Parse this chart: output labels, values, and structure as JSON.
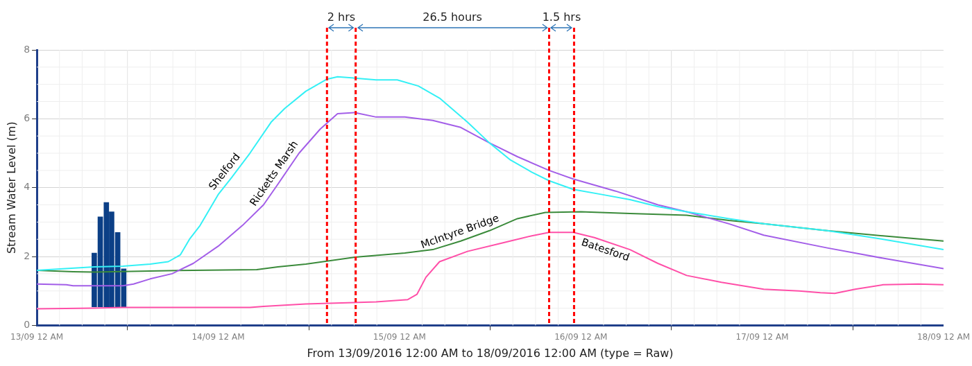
{
  "chart_data": {
    "type": "line",
    "xlabel": "From 13/09/2016 12:00 AM to 18/09/2016 12:00 AM (type = Raw)",
    "ylabel": "Stream Water Level (m)",
    "xlim": [
      "2016-09-13",
      "2016-09-18"
    ],
    "xticks": [
      {
        "value": "2016-09-13",
        "label": "13/09 12 AM"
      },
      {
        "value": "2016-09-14",
        "label": "14/09 12 AM"
      },
      {
        "value": "2016-09-15",
        "label": "15/09 12 AM"
      },
      {
        "value": "2016-09-16",
        "label": "16/09 12 AM"
      },
      {
        "value": "2016-09-17",
        "label": "17/09 12 AM"
      },
      {
        "value": "2016-09-18",
        "label": "18/09 12 AM"
      }
    ],
    "ylim": [
      0,
      8
    ],
    "yticks": [
      0,
      2,
      4,
      6,
      8
    ],
    "grid": true,
    "marker": "none",
    "line_style": "solid",
    "series": [
      {
        "name": "Shelford",
        "color": "#33f0f5",
        "x": [
          "2016-09-13T00:00",
          "2016-09-13T07:36",
          "2016-09-13T11:24",
          "2016-09-13T15:00",
          "2016-09-13T17:24",
          "2016-09-13T19:00",
          "2016-09-13T20:12",
          "2016-09-13T21:36",
          "2016-09-14T00:00",
          "2016-09-14T01:48",
          "2016-09-14T04:12",
          "2016-09-14T07:00",
          "2016-09-14T08:48",
          "2016-09-14T11:36",
          "2016-09-14T14:24",
          "2016-09-14T15:48",
          "2016-09-14T18:06",
          "2016-09-14T20:54",
          "2016-09-14T23:42",
          "2016-09-15T02:30",
          "2016-09-15T05:18",
          "2016-09-15T09:00",
          "2016-09-15T11:54",
          "2016-09-15T14:42",
          "2016-09-15T17:30",
          "2016-09-15T19:48",
          "2016-09-15T23:00",
          "2016-09-16T02:48",
          "2016-09-16T06:30",
          "2016-09-16T10:12",
          "2016-09-16T14:00",
          "2016-09-16T19:36",
          "2016-09-17T00:12",
          "2016-09-17T08:36",
          "2016-09-17T16:00",
          "2016-09-18T00:00"
        ],
        "values": [
          1.6,
          1.7,
          1.72,
          1.78,
          1.85,
          2.05,
          2.5,
          2.9,
          3.8,
          4.3,
          5.0,
          5.9,
          6.3,
          6.8,
          7.15,
          7.22,
          7.18,
          7.13,
          7.13,
          6.95,
          6.6,
          5.9,
          5.3,
          4.8,
          4.45,
          4.2,
          3.95,
          3.8,
          3.65,
          3.45,
          3.3,
          3.1,
          2.95,
          2.75,
          2.5,
          2.2
        ]
      },
      {
        "name": "Ricketts Marsh",
        "color": "#a35ee8",
        "x": [
          "2016-09-13T00:00",
          "2016-09-13T03:54",
          "2016-09-13T04:48",
          "2016-09-13T11:24",
          "2016-09-13T12:48",
          "2016-09-13T15:00",
          "2016-09-13T17:54",
          "2016-09-13T20:42",
          "2016-09-14T00:00",
          "2016-09-14T03:12",
          "2016-09-14T06:00",
          "2016-09-14T07:54",
          "2016-09-14T10:42",
          "2016-09-14T13:30",
          "2016-09-14T15:48",
          "2016-09-14T18:06",
          "2016-09-14T20:54",
          "2016-09-15T00:42",
          "2016-09-15T04:24",
          "2016-09-15T08:06",
          "2016-09-15T11:54",
          "2016-09-15T15:36",
          "2016-09-15T19:48",
          "2016-09-15T23:00",
          "2016-09-16T04:36",
          "2016-09-16T10:12",
          "2016-09-16T14:00",
          "2016-09-16T19:36",
          "2016-09-17T00:12",
          "2016-09-17T08:36",
          "2016-09-17T16:00",
          "2016-09-18T00:00"
        ],
        "values": [
          1.2,
          1.18,
          1.15,
          1.15,
          1.2,
          1.35,
          1.5,
          1.8,
          2.3,
          2.9,
          3.5,
          4.1,
          5.0,
          5.7,
          6.15,
          6.18,
          6.05,
          6.05,
          5.95,
          5.75,
          5.3,
          4.9,
          4.5,
          4.25,
          3.9,
          3.5,
          3.3,
          2.95,
          2.62,
          2.25,
          1.95,
          1.65
        ]
      },
      {
        "name": "McIntyre Bridge",
        "color": "#3a8a3a",
        "x": [
          "2016-09-13T00:00",
          "2016-09-13T04:48",
          "2016-09-13T07:36",
          "2016-09-13T20:42",
          "2016-09-14T05:06",
          "2016-09-14T07:54",
          "2016-09-14T11:36",
          "2016-09-14T18:06",
          "2016-09-15T00:42",
          "2016-09-15T04:24",
          "2016-09-15T08:06",
          "2016-09-15T11:54",
          "2016-09-15T15:36",
          "2016-09-15T19:18",
          "2016-09-16T00:00",
          "2016-09-16T06:30",
          "2016-09-16T14:00",
          "2016-09-16T19:36",
          "2016-09-17T00:12",
          "2016-09-17T08:36",
          "2016-09-17T16:00",
          "2016-09-18T00:00"
        ],
        "values": [
          1.6,
          1.56,
          1.55,
          1.6,
          1.62,
          1.7,
          1.78,
          1.98,
          2.1,
          2.2,
          2.45,
          2.75,
          3.1,
          3.28,
          3.3,
          3.25,
          3.2,
          3.05,
          2.95,
          2.75,
          2.6,
          2.45
        ]
      },
      {
        "name": "Batesford",
        "color": "#ff4fa8",
        "x": [
          "2016-09-13T00:00",
          "2016-09-13T07:36",
          "2016-09-13T11:24",
          "2016-09-14T04:12",
          "2016-09-14T06:00",
          "2016-09-14T11:36",
          "2016-09-14T20:54",
          "2016-09-15T01:06",
          "2016-09-15T02:18",
          "2016-09-15T03:30",
          "2016-09-15T05:18",
          "2016-09-15T09:00",
          "2016-09-15T13:42",
          "2016-09-15T17:30",
          "2016-09-15T19:48",
          "2016-09-15T23:00",
          "2016-09-16T01:48",
          "2016-09-16T06:30",
          "2016-09-16T10:12",
          "2016-09-16T14:00",
          "2016-09-16T18:36",
          "2016-09-17T00:12",
          "2016-09-17T04:54",
          "2016-09-17T07:42",
          "2016-09-17T09:36",
          "2016-09-17T12:18",
          "2016-09-17T16:00",
          "2016-09-17T20:42",
          "2016-09-18T00:00"
        ],
        "values": [
          0.48,
          0.5,
          0.52,
          0.52,
          0.55,
          0.62,
          0.68,
          0.75,
          0.9,
          1.4,
          1.85,
          2.15,
          2.4,
          2.6,
          2.7,
          2.7,
          2.55,
          2.2,
          1.8,
          1.45,
          1.25,
          1.05,
          1.0,
          0.95,
          0.93,
          1.05,
          1.18,
          1.2,
          1.18
        ]
      },
      {
        "type": "bar",
        "color": "#0b3f86",
        "x": [
          "2016-09-13T07:36",
          "2016-09-13T08:24",
          "2016-09-13T09:12",
          "2016-09-13T09:54",
          "2016-09-13T10:42",
          "2016-09-13T11:30"
        ],
        "base": [
          0.54,
          0.54,
          0.54,
          0.54,
          0.54,
          0.54
        ],
        "values": [
          1.56,
          2.61,
          3.03,
          2.76,
          2.16,
          1.1
        ]
      }
    ],
    "ref_lines": [
      {
        "axis": "x",
        "value": "2016-09-14T14:24",
        "color": "#ff0000",
        "line_style": "dashed"
      },
      {
        "axis": "x",
        "value": "2016-09-14T18:12",
        "color": "#ff0000",
        "line_style": "dashed"
      },
      {
        "axis": "x",
        "value": "2016-09-15T19:48",
        "color": "#ff0000",
        "line_style": "dashed"
      },
      {
        "axis": "x",
        "value": "2016-09-15T23:06",
        "color": "#ff0000",
        "line_style": "dashed"
      }
    ],
    "annotations": [
      "2 hrs",
      "26.5 hours",
      "1.5 hrs"
    ]
  }
}
